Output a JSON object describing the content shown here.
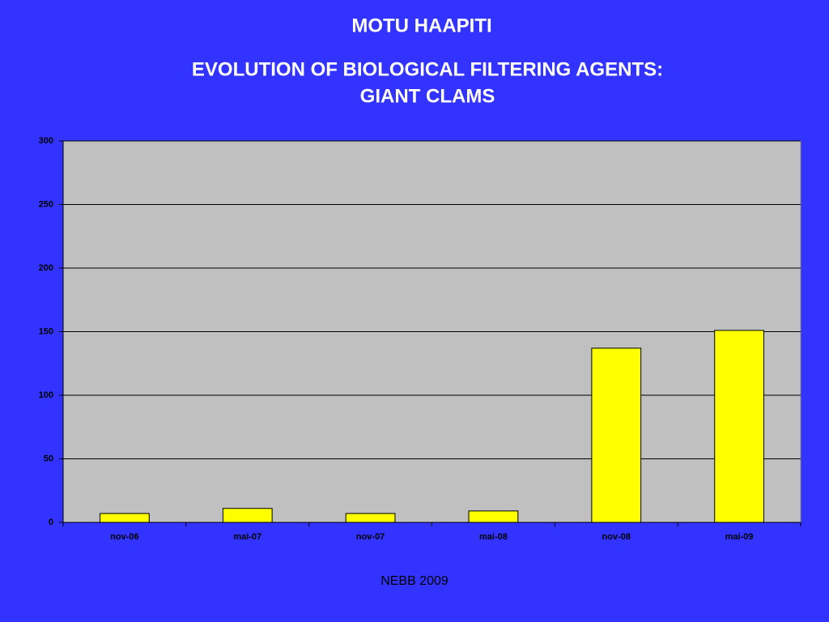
{
  "chart_data": {
    "type": "bar",
    "title": "MOTU HAAPITI",
    "subtitle": [
      "EVOLUTION OF BIOLOGICAL FILTERING AGENTS:",
      "GIANT CLAMS"
    ],
    "categories": [
      "nov-06",
      "mai-07",
      "nov-07",
      "mai-08",
      "nov-08",
      "mai-09"
    ],
    "values": [
      7,
      11,
      7,
      9,
      137,
      151
    ],
    "color": "#ffff00",
    "ylim": [
      0,
      300
    ],
    "yticks": [
      0,
      50,
      100,
      150,
      200,
      250,
      300
    ],
    "grid": true
  },
  "footer": "NEBB 2009"
}
